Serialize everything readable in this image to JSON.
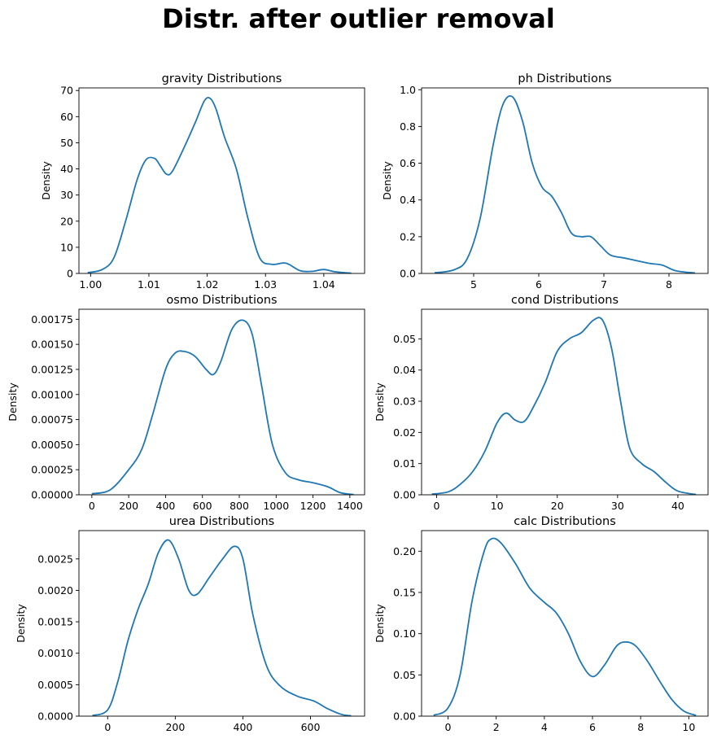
{
  "figure": {
    "suptitle": "Distr. after outlier removal",
    "line_color": "#1f77b4"
  },
  "chart_data": [
    {
      "type": "line",
      "title": "gravity Distributions",
      "xlabel": "",
      "ylabel": "Density",
      "xlim": [
        0.998,
        1.047
      ],
      "ylim": [
        0,
        71
      ],
      "xticks": [
        1.0,
        1.01,
        1.02,
        1.03,
        1.04
      ],
      "xtick_labels": [
        "1.00",
        "1.01",
        "1.02",
        "1.03",
        "1.04"
      ],
      "yticks": [
        0,
        10,
        20,
        30,
        40,
        50,
        60,
        70
      ],
      "ytick_labels": [
        "0",
        "10",
        "20",
        "30",
        "40",
        "50",
        "60",
        "70"
      ],
      "x": [
        0.9995,
        1.002,
        1.004,
        1.006,
        1.008,
        1.0095,
        1.011,
        1.012,
        1.013,
        1.014,
        1.016,
        1.018,
        1.0195,
        1.0205,
        1.0215,
        1.023,
        1.025,
        1.027,
        1.029,
        1.031,
        1.033,
        1.034,
        1.036,
        1.038,
        1.04,
        1.042,
        1.0447
      ],
      "y": [
        0.3,
        1.5,
        6,
        20,
        36,
        43.5,
        44,
        41,
        38,
        39,
        48,
        58,
        66,
        67,
        63,
        52,
        40,
        21,
        6,
        3.5,
        4,
        3.5,
        1,
        0.8,
        1.5,
        0.6,
        0.1
      ]
    },
    {
      "type": "line",
      "title": "ph Distributions",
      "xlabel": "",
      "ylabel": "Density",
      "xlim": [
        4.2,
        8.6
      ],
      "ylim": [
        0,
        1.01
      ],
      "xticks": [
        5,
        6,
        7,
        8
      ],
      "xtick_labels": [
        "5",
        "6",
        "7",
        "8"
      ],
      "yticks": [
        0.0,
        0.2,
        0.4,
        0.6,
        0.8,
        1.0
      ],
      "ytick_labels": [
        "0.0",
        "0.2",
        "0.4",
        "0.6",
        "0.8",
        "1.0"
      ],
      "x": [
        4.4,
        4.7,
        4.9,
        5.1,
        5.3,
        5.45,
        5.6,
        5.75,
        5.9,
        6.05,
        6.2,
        6.35,
        6.5,
        6.65,
        6.8,
        6.95,
        7.1,
        7.3,
        7.5,
        7.7,
        7.9,
        8.1,
        8.4
      ],
      "y": [
        0.003,
        0.02,
        0.08,
        0.3,
        0.7,
        0.92,
        0.96,
        0.83,
        0.6,
        0.47,
        0.42,
        0.33,
        0.22,
        0.2,
        0.2,
        0.15,
        0.1,
        0.085,
        0.07,
        0.055,
        0.045,
        0.015,
        0.002
      ]
    },
    {
      "type": "line",
      "title": "osmo Distributions",
      "xlabel": "",
      "ylabel": "Density",
      "xlim": [
        -70,
        1480
      ],
      "ylim": [
        0,
        0.00185
      ],
      "xticks": [
        0,
        200,
        400,
        600,
        800,
        1000,
        1200,
        1400
      ],
      "xtick_labels": [
        "0",
        "200",
        "400",
        "600",
        "800",
        "1000",
        "1200",
        "1400"
      ],
      "yticks": [
        0,
        0.00025,
        0.0005,
        0.00075,
        0.001,
        0.00125,
        0.0015,
        0.00175
      ],
      "ytick_labels": [
        "0.00000",
        "0.00025",
        "0.00050",
        "0.00075",
        "0.00100",
        "0.00125",
        "0.00150",
        "0.00175"
      ],
      "x": [
        0,
        100,
        200,
        270,
        330,
        400,
        450,
        500,
        560,
        620,
        660,
        700,
        760,
        820,
        870,
        920,
        980,
        1050,
        1120,
        1200,
        1280,
        1350,
        1420
      ],
      "y": [
        1e-05,
        5e-05,
        0.00025,
        0.00045,
        0.0008,
        0.00125,
        0.00141,
        0.00143,
        0.00138,
        0.00125,
        0.0012,
        0.00133,
        0.00165,
        0.00174,
        0.0016,
        0.0011,
        0.0005,
        0.00022,
        0.00015,
        0.00012,
        8e-05,
        2e-05,
        2e-06
      ]
    },
    {
      "type": "line",
      "title": "cond Distributions",
      "xlabel": "",
      "ylabel": "Density",
      "xlim": [
        -2.5,
        45
      ],
      "ylim": [
        0,
        0.0595
      ],
      "xticks": [
        0,
        10,
        20,
        30,
        40
      ],
      "xtick_labels": [
        "0",
        "10",
        "20",
        "30",
        "40"
      ],
      "yticks": [
        0.0,
        0.01,
        0.02,
        0.03,
        0.04,
        0.05
      ],
      "ytick_labels": [
        "0.00",
        "0.01",
        "0.02",
        "0.03",
        "0.04",
        "0.05"
      ],
      "x": [
        -0.8,
        2,
        4,
        6,
        8,
        10,
        11.5,
        13,
        14.5,
        16,
        18,
        20,
        22,
        24,
        26,
        27.5,
        29,
        30.5,
        32,
        34,
        36,
        38,
        40,
        43
      ],
      "y": [
        0.0002,
        0.001,
        0.0035,
        0.0075,
        0.014,
        0.023,
        0.0262,
        0.024,
        0.0235,
        0.028,
        0.036,
        0.046,
        0.05,
        0.052,
        0.056,
        0.056,
        0.047,
        0.03,
        0.015,
        0.01,
        0.0075,
        0.004,
        0.0012,
        0.0001
      ]
    },
    {
      "type": "line",
      "title": "urea Distributions",
      "xlabel": "",
      "ylabel": "Density",
      "xlim": [
        -85,
        760
      ],
      "ylim": [
        0,
        0.00295
      ],
      "xticks": [
        0,
        200,
        400,
        600
      ],
      "xtick_labels": [
        "0",
        "200",
        "400",
        "600"
      ],
      "yticks": [
        0,
        0.0005,
        0.001,
        0.0015,
        0.002,
        0.0025
      ],
      "ytick_labels": [
        "0.0000",
        "0.0005",
        "0.0010",
        "0.0015",
        "0.0020",
        "0.0025"
      ],
      "x": [
        -45,
        0,
        30,
        60,
        90,
        120,
        150,
        180,
        210,
        240,
        265,
        300,
        340,
        375,
        400,
        430,
        470,
        510,
        560,
        610,
        650,
        690,
        720
      ],
      "y": [
        1e-05,
        0.0001,
        0.00055,
        0.0012,
        0.0017,
        0.0021,
        0.0026,
        0.0028,
        0.0025,
        0.002,
        0.00194,
        0.0022,
        0.0025,
        0.0027,
        0.0025,
        0.0016,
        0.0008,
        0.00048,
        0.00032,
        0.00024,
        0.00012,
        3e-05,
        4e-06
      ]
    },
    {
      "type": "line",
      "title": "calc Distributions",
      "xlabel": "",
      "ylabel": "Density",
      "xlim": [
        -1.1,
        10.8
      ],
      "ylim": [
        0,
        0.225
      ],
      "xticks": [
        0,
        2,
        4,
        6,
        8,
        10
      ],
      "xtick_labels": [
        "0",
        "2",
        "4",
        "6",
        "8",
        "10"
      ],
      "yticks": [
        0.0,
        0.05,
        0.1,
        0.15,
        0.2
      ],
      "ytick_labels": [
        "0.00",
        "0.05",
        "0.10",
        "0.15",
        "0.20"
      ],
      "x": [
        -0.6,
        0,
        0.5,
        1,
        1.5,
        1.8,
        2.2,
        2.8,
        3.4,
        4,
        4.5,
        5,
        5.5,
        6,
        6.5,
        7,
        7.4,
        7.8,
        8.3,
        8.8,
        9.3,
        9.8,
        10.3
      ],
      "y": [
        0.001,
        0.01,
        0.05,
        0.14,
        0.2,
        0.215,
        0.21,
        0.185,
        0.155,
        0.138,
        0.125,
        0.1,
        0.066,
        0.048,
        0.062,
        0.085,
        0.09,
        0.085,
        0.066,
        0.042,
        0.02,
        0.006,
        0.001
      ]
    }
  ]
}
